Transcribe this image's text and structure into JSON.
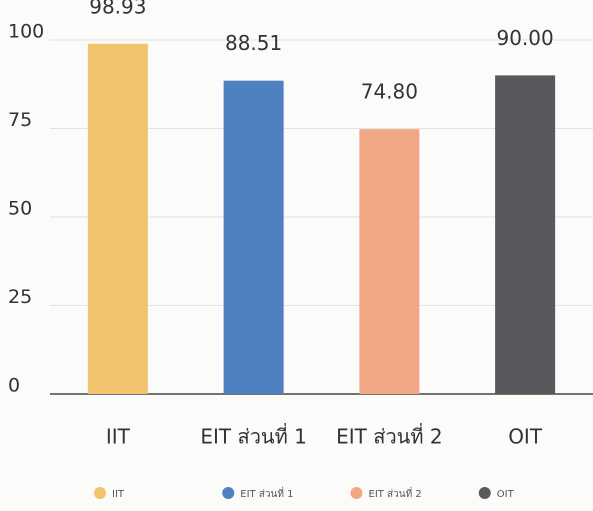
{
  "chart_data": {
    "type": "bar",
    "categories": [
      "IIT",
      "EIT ส่วนที่ 1",
      "EIT ส่วนที่ 2",
      "OIT"
    ],
    "values": [
      98.93,
      88.51,
      74.8,
      90
    ],
    "value_labels": [
      "98.93",
      "88.51",
      "74.80",
      "90.00"
    ],
    "colors": [
      "#f2c46d",
      "#4f80c0",
      "#f1a685",
      "#58585d"
    ],
    "ylim": [
      0,
      100
    ],
    "yticks": [
      0,
      25,
      50,
      75,
      100
    ],
    "grid": true,
    "legend": "bottom"
  }
}
